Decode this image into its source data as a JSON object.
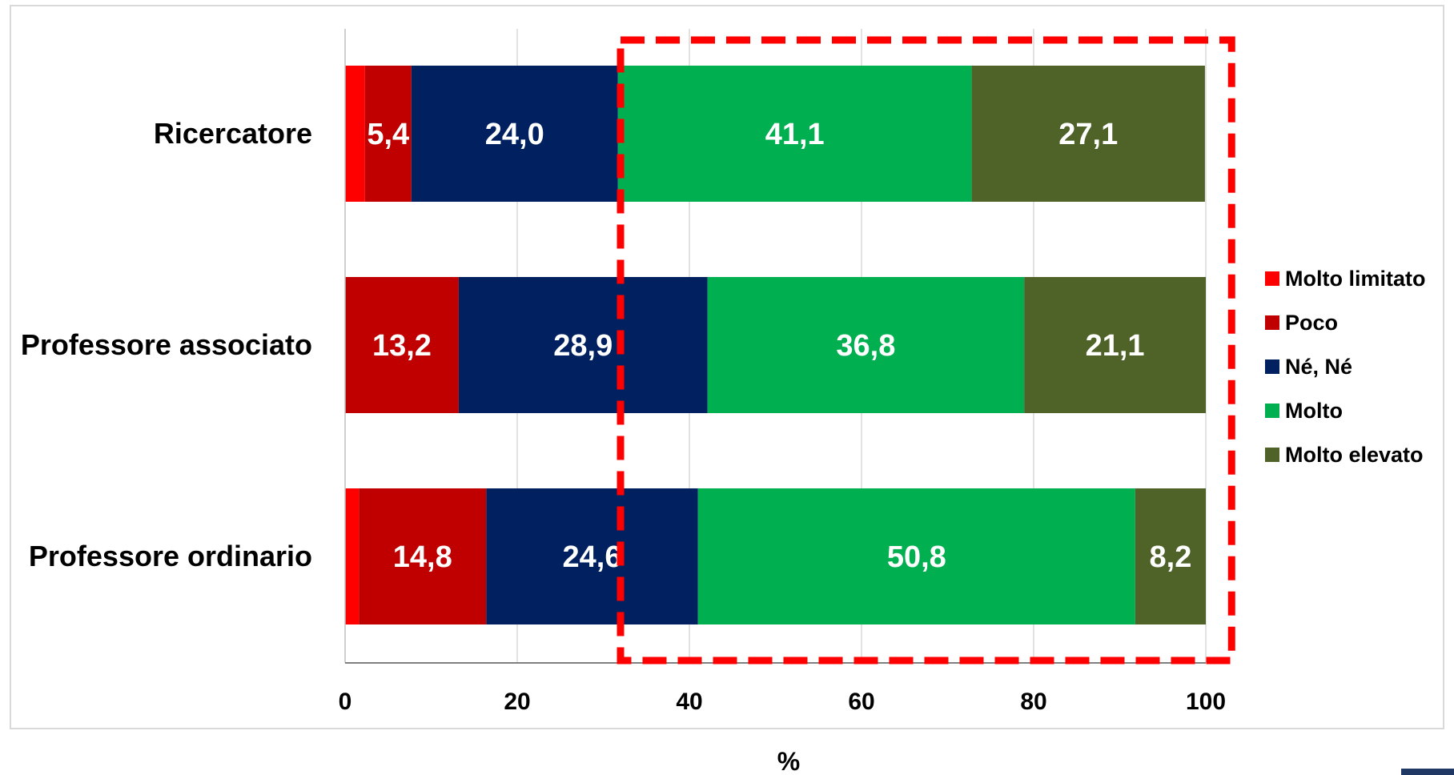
{
  "chart_data": {
    "type": "bar",
    "orientation": "horizontal",
    "stacked": true,
    "categories": [
      "Ricercatore",
      "Professore associato",
      "Professore ordinario"
    ],
    "series": [
      {
        "name": "Molto limitato",
        "values": [
          2.3,
          0,
          1.6
        ],
        "labels": [
          "",
          "",
          ""
        ],
        "color": "#ff0000"
      },
      {
        "name": "Poco",
        "values": [
          5.4,
          13.2,
          14.8
        ],
        "labels": [
          "5,4",
          "13,2",
          "14,8"
        ],
        "color": "#c00000"
      },
      {
        "name": "Né, Né",
        "values": [
          24.0,
          28.9,
          24.6
        ],
        "labels": [
          "24,0",
          "28,9",
          "24,6"
        ],
        "color": "#002060"
      },
      {
        "name": "Molto",
        "values": [
          41.1,
          36.8,
          50.8
        ],
        "labels": [
          "41,1",
          "36,8",
          "50,8"
        ],
        "color": "#00b050"
      },
      {
        "name": "Molto elevato",
        "values": [
          27.1,
          21.1,
          8.2
        ],
        "labels": [
          "27,1",
          "21,1",
          "8,2"
        ],
        "color": "#4f6228"
      }
    ],
    "x_ticks": [
      "0",
      "20",
      "40",
      "60",
      "80",
      "100"
    ],
    "xlim": [
      0,
      100
    ],
    "xlabel": "%",
    "grid": true,
    "legend": "right",
    "highlight": {
      "x_from": 32,
      "x_to": 103,
      "style": "dashed",
      "color": "#ff0000"
    }
  }
}
